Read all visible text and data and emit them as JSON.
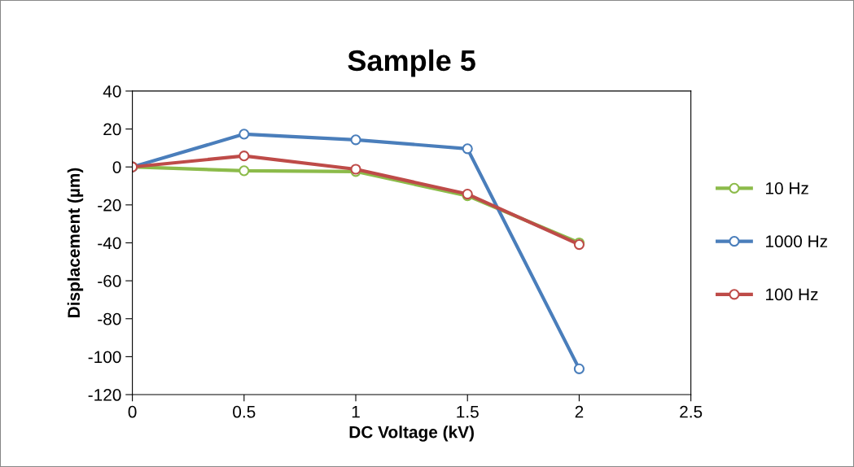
{
  "chart_data": {
    "type": "line",
    "title": "Sample 5",
    "xlabel": "DC Voltage (kV)",
    "ylabel": "Displacement (µm)",
    "x": [
      0,
      0.5,
      1,
      1.5,
      2
    ],
    "series": [
      {
        "name": "10 Hz",
        "color": "#8cbb4a",
        "values": [
          0,
          -2,
          -2.4,
          -15.2,
          -40
        ]
      },
      {
        "name": "1000 Hz",
        "color": "#4a7ebb",
        "values": [
          0,
          17.3,
          14.3,
          9.6,
          -106.4
        ]
      },
      {
        "name": "100 Hz",
        "color": "#be4b48",
        "values": [
          0,
          5.8,
          -1.2,
          -14.3,
          -40.9
        ]
      }
    ],
    "xlim": [
      0,
      2.5
    ],
    "xticks": [
      0,
      0.5,
      1,
      1.5,
      2,
      2.5
    ],
    "ylim": [
      -120,
      40
    ],
    "yticks": [
      -120,
      -100,
      -80,
      -60,
      -40,
      -20,
      0,
      20,
      40
    ],
    "grid": false,
    "legend": "right",
    "marker": "circle",
    "line_style": "solid"
  }
}
